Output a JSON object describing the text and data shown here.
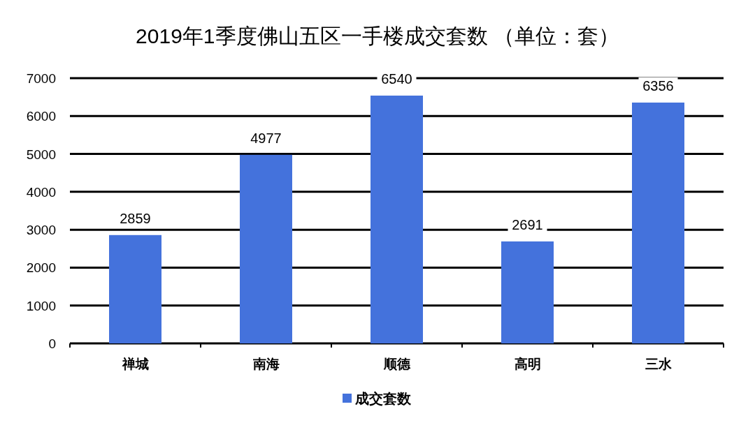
{
  "chart_data": {
    "type": "bar",
    "title": "2019年1季度佛山五区一手楼成交套数 （单位：套）",
    "categories": [
      "禅城",
      "南海",
      "顺德",
      "高明",
      "三水"
    ],
    "series": [
      {
        "name": "成交套数",
        "color": "#4472dc",
        "values": [
          2859,
          4977,
          6540,
          2691,
          6356
        ]
      }
    ],
    "ylim": [
      0,
      7000
    ],
    "yticks": [
      0,
      1000,
      2000,
      3000,
      4000,
      5000,
      6000,
      7000
    ],
    "grid": "y",
    "legend": "bottom",
    "data_labels": true
  }
}
